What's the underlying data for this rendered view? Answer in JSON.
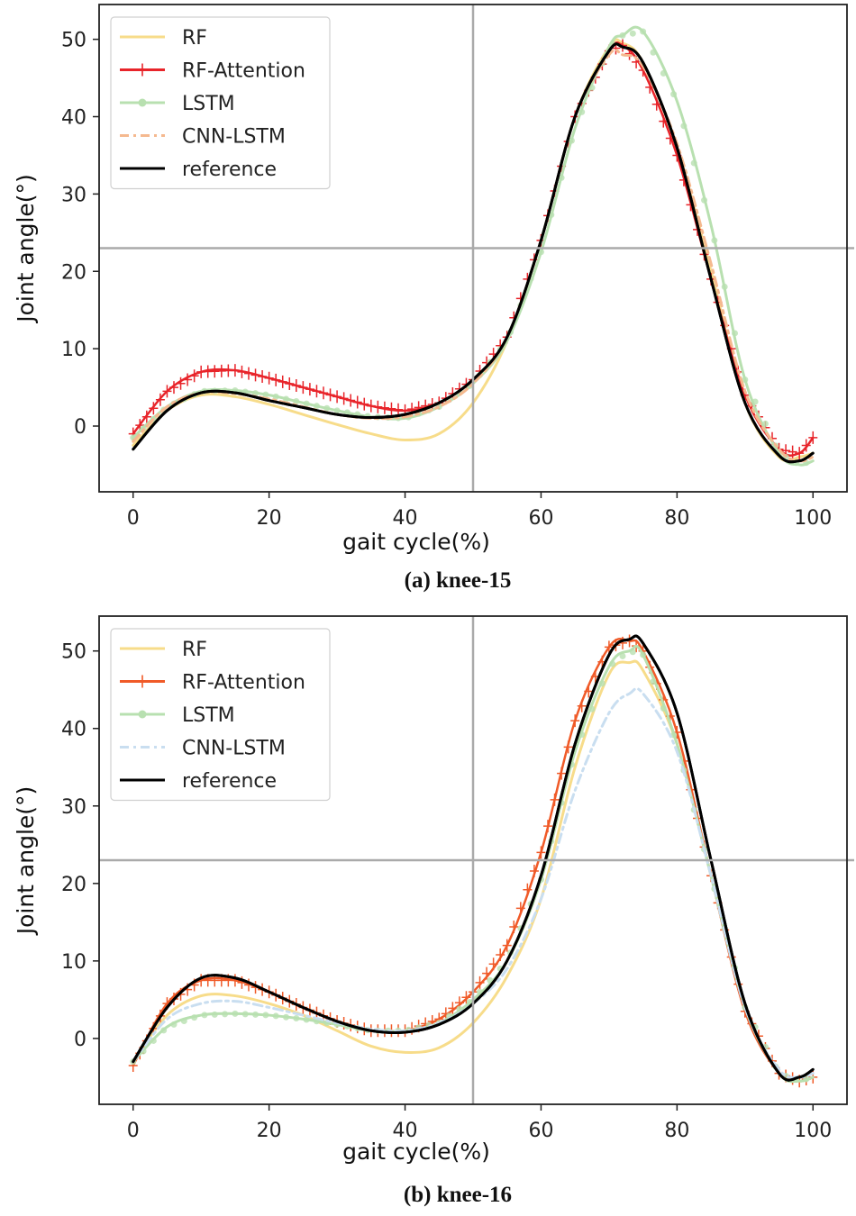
{
  "chart_data": [
    {
      "type": "line",
      "title": "(a) knee-15",
      "xlabel": "gait cycle(%)",
      "ylabel": "Joint angle(°)",
      "xlim": [
        -5,
        105
      ],
      "ylim": [
        -8.5,
        54.5
      ],
      "xticks": [
        0,
        20,
        40,
        60,
        80,
        100
      ],
      "yticks": [
        0,
        10,
        20,
        30,
        40,
        50
      ],
      "legend_position": "upper-left",
      "crosshair": {
        "x": 50,
        "y": 23
      },
      "x": [
        0,
        5,
        10,
        15,
        20,
        25,
        30,
        35,
        40,
        45,
        50,
        55,
        60,
        65,
        70,
        72,
        75,
        80,
        85,
        90,
        95,
        98,
        100
      ],
      "series": [
        {
          "name": "RF",
          "color": "#f7dc8a",
          "style": "solid",
          "marker": "none",
          "values": [
            -2.5,
            2.0,
            4.0,
            3.8,
            2.8,
            1.5,
            0.2,
            -1.0,
            -1.8,
            -1.0,
            3.0,
            11.0,
            24.0,
            40.0,
            49.0,
            49.5,
            47.0,
            36.0,
            20.0,
            3.0,
            -4.0,
            -4.0,
            -3.5
          ]
        },
        {
          "name": "RF-Attention",
          "color": "#e8242a",
          "style": "solid",
          "marker": "plus",
          "values": [
            -1.0,
            4.5,
            7.0,
            7.2,
            6.2,
            5.0,
            3.8,
            2.6,
            2.0,
            3.0,
            6.0,
            11.5,
            24.0,
            40.0,
            48.5,
            49.2,
            46.0,
            35.0,
            19.0,
            4.0,
            -3.0,
            -3.5,
            -1.5
          ]
        },
        {
          "name": "LSTM",
          "color": "#b8e0b0",
          "style": "solid",
          "marker": "star",
          "values": [
            -1.5,
            2.5,
            4.5,
            4.6,
            4.0,
            3.0,
            2.0,
            1.2,
            1.0,
            2.5,
            5.5,
            11.0,
            22.5,
            38.5,
            49.0,
            50.5,
            51.0,
            42.0,
            26.0,
            6.0,
            -3.5,
            -5.0,
            -4.5
          ]
        },
        {
          "name": "CNN-LSTM",
          "color": "#f5b98f",
          "style": "dashdot",
          "marker": "none",
          "values": [
            -2.0,
            2.5,
            4.3,
            4.2,
            3.5,
            2.5,
            1.5,
            1.0,
            1.2,
            2.5,
            5.5,
            11.5,
            24.0,
            40.0,
            48.0,
            48.0,
            46.5,
            36.5,
            21.0,
            4.5,
            -3.0,
            -4.5,
            -4.0
          ]
        },
        {
          "name": "reference",
          "color": "#000000",
          "style": "solid",
          "marker": "none",
          "values": [
            -3.0,
            2.0,
            4.3,
            4.3,
            3.3,
            2.4,
            1.5,
            1.1,
            1.5,
            3.0,
            6.0,
            11.5,
            24.0,
            40.0,
            48.5,
            49.0,
            47.0,
            36.0,
            19.0,
            3.0,
            -3.8,
            -4.5,
            -3.5
          ]
        }
      ]
    },
    {
      "type": "line",
      "title": "(b) knee-16",
      "xlabel": "gait cycle(%)",
      "ylabel": "Joint angle(°)",
      "xlim": [
        -5,
        105
      ],
      "ylim": [
        -8.5,
        54.5
      ],
      "xticks": [
        0,
        20,
        40,
        60,
        80,
        100
      ],
      "yticks": [
        0,
        10,
        20,
        30,
        40,
        50
      ],
      "legend_position": "upper-left",
      "crosshair": {
        "x": 50,
        "y": 23
      },
      "x": [
        0,
        5,
        10,
        15,
        20,
        25,
        30,
        35,
        40,
        45,
        50,
        55,
        60,
        65,
        70,
        73,
        75,
        80,
        85,
        90,
        95,
        98,
        100
      ],
      "series": [
        {
          "name": "RF",
          "color": "#f7dc8a",
          "style": "solid",
          "marker": "none",
          "values": [
            -3.0,
            3.0,
            5.5,
            5.5,
            4.5,
            3.0,
            1.0,
            -1.0,
            -1.8,
            -1.2,
            2.0,
            8.0,
            18.0,
            35.0,
            47.0,
            48.5,
            47.5,
            38.0,
            21.0,
            4.0,
            -4.5,
            -5.5,
            -5.0
          ]
        },
        {
          "name": "RF-Attention",
          "color": "#f05a28",
          "style": "solid",
          "marker": "plus",
          "values": [
            -3.5,
            4.5,
            7.5,
            7.5,
            6.0,
            4.0,
            2.2,
            1.0,
            1.0,
            2.5,
            6.0,
            12.0,
            24.0,
            41.0,
            50.5,
            51.3,
            50.0,
            39.5,
            21.0,
            3.5,
            -4.5,
            -5.5,
            -5.0
          ]
        },
        {
          "name": "LSTM",
          "color": "#b8e0b0",
          "style": "solid",
          "marker": "star",
          "values": [
            -3.0,
            1.5,
            3.0,
            3.2,
            3.0,
            2.5,
            1.8,
            1.0,
            1.0,
            2.0,
            5.0,
            10.0,
            20.5,
            37.0,
            48.0,
            50.0,
            49.5,
            38.0,
            21.0,
            4.0,
            -4.5,
            -5.5,
            -5.0
          ]
        },
        {
          "name": "CNN-LSTM",
          "color": "#c9def0",
          "style": "dashdot",
          "marker": "none",
          "values": [
            -3.0,
            2.5,
            4.5,
            4.8,
            4.0,
            3.0,
            2.0,
            1.2,
            1.0,
            2.0,
            4.5,
            9.0,
            18.0,
            32.0,
            42.0,
            44.5,
            44.5,
            37.0,
            21.0,
            4.0,
            -4.0,
            -5.0,
            -4.5
          ]
        },
        {
          "name": "reference",
          "color": "#000000",
          "style": "solid",
          "marker": "none",
          "values": [
            -3.0,
            4.0,
            7.8,
            7.8,
            6.0,
            4.0,
            2.2,
            1.0,
            0.8,
            1.8,
            4.5,
            10.0,
            21.0,
            38.0,
            49.5,
            51.5,
            51.0,
            42.0,
            23.0,
            4.5,
            -4.5,
            -5.0,
            -4.0
          ]
        }
      ]
    }
  ]
}
